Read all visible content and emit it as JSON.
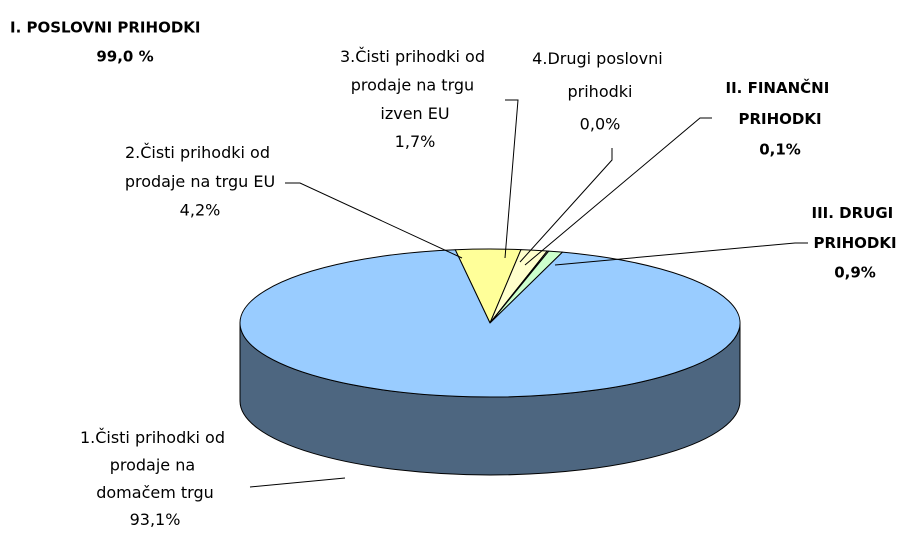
{
  "chart_data": {
    "type": "pie3d",
    "annotations": [
      "I. POSLOVNI PRIHODKI",
      "99,0 %"
    ],
    "categories": [
      "1.Čisti prihodki od prodaje na domačem trgu",
      "2.Čisti prihodki od prodaje na trgu EU",
      "3.Čisti prihodki od prodaje na trgu izven EU",
      "4.Drugi poslovni prihodki",
      "II. FINANČNI PRIHODKI",
      "III. DRUGI PRIHODKI"
    ],
    "values": [
      93.1,
      4.2,
      1.7,
      0.0,
      0.1,
      0.9
    ],
    "value_labels": [
      "93,1%",
      "4,2%",
      "1,7%",
      "0,0%",
      "0,1%",
      "0,9%"
    ],
    "colors": [
      "#99ccff",
      "#ffff99",
      "#ffffcc",
      "#ffffff",
      "#ffffff",
      "#ccffcc"
    ]
  }
}
